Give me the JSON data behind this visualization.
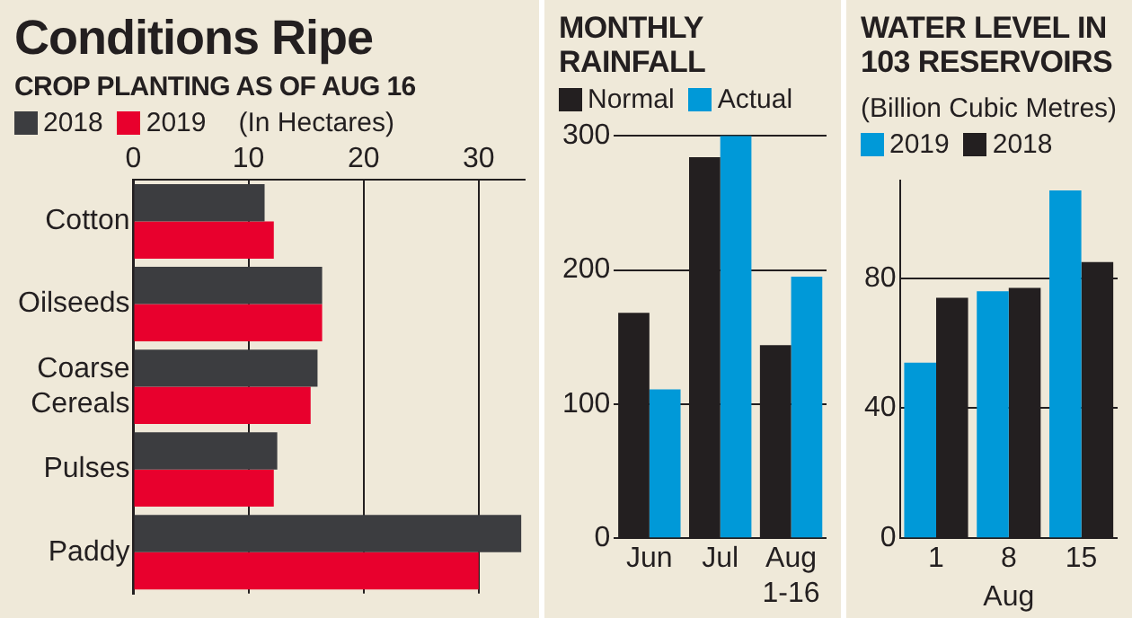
{
  "chart_data": [
    {
      "type": "bar",
      "title": "Conditions Ripe",
      "subtitle": "CROP PLANTING AS OF  AUG 16",
      "annotations": [
        "(In Hectares)"
      ],
      "orientation": "horizontal",
      "categories": [
        "Cotton",
        "Oilseeds",
        "Coarse Cereals",
        "Pulses",
        "Paddy"
      ],
      "series": [
        {
          "name": "2018",
          "color": "#3c3d40",
          "values": [
            11.4,
            16.4,
            16.0,
            12.5,
            33.7
          ]
        },
        {
          "name": "2019",
          "color": "#e8002d",
          "values": [
            12.2,
            16.4,
            15.4,
            12.2,
            30.0
          ]
        }
      ],
      "xlim": [
        0,
        34
      ],
      "xticks": [
        0,
        10,
        20,
        30
      ],
      "grid": "x",
      "legend": "top left"
    },
    {
      "type": "bar",
      "title": "MONTHLY RAINFALL",
      "categories": [
        "Jun",
        "Jul",
        "Aug 1-16"
      ],
      "series": [
        {
          "name": "Normal",
          "color": "#231f20",
          "values": [
            168,
            284,
            144
          ]
        },
        {
          "name": "Actual",
          "color": "#0099d8",
          "values": [
            111,
            300,
            195
          ]
        }
      ],
      "ylim": [
        0,
        300
      ],
      "yticks": [
        0,
        100,
        200,
        300
      ],
      "grid": "y",
      "legend": "top left"
    },
    {
      "type": "bar",
      "title": "WATER LEVEL IN 103 RESERVOIRS",
      "subtitle": "(Billion Cubic Metres)",
      "xlabel": "Aug",
      "categories": [
        "1",
        "8",
        "15"
      ],
      "series": [
        {
          "name": "2019",
          "color": "#0099d8",
          "values": [
            54,
            76,
            107
          ]
        },
        {
          "name": "2018",
          "color": "#231f20",
          "values": [
            74,
            77,
            85
          ]
        }
      ],
      "ylim": [
        0,
        110
      ],
      "yticks": [
        0,
        40,
        80
      ],
      "grid": "y",
      "legend": "top left"
    }
  ]
}
